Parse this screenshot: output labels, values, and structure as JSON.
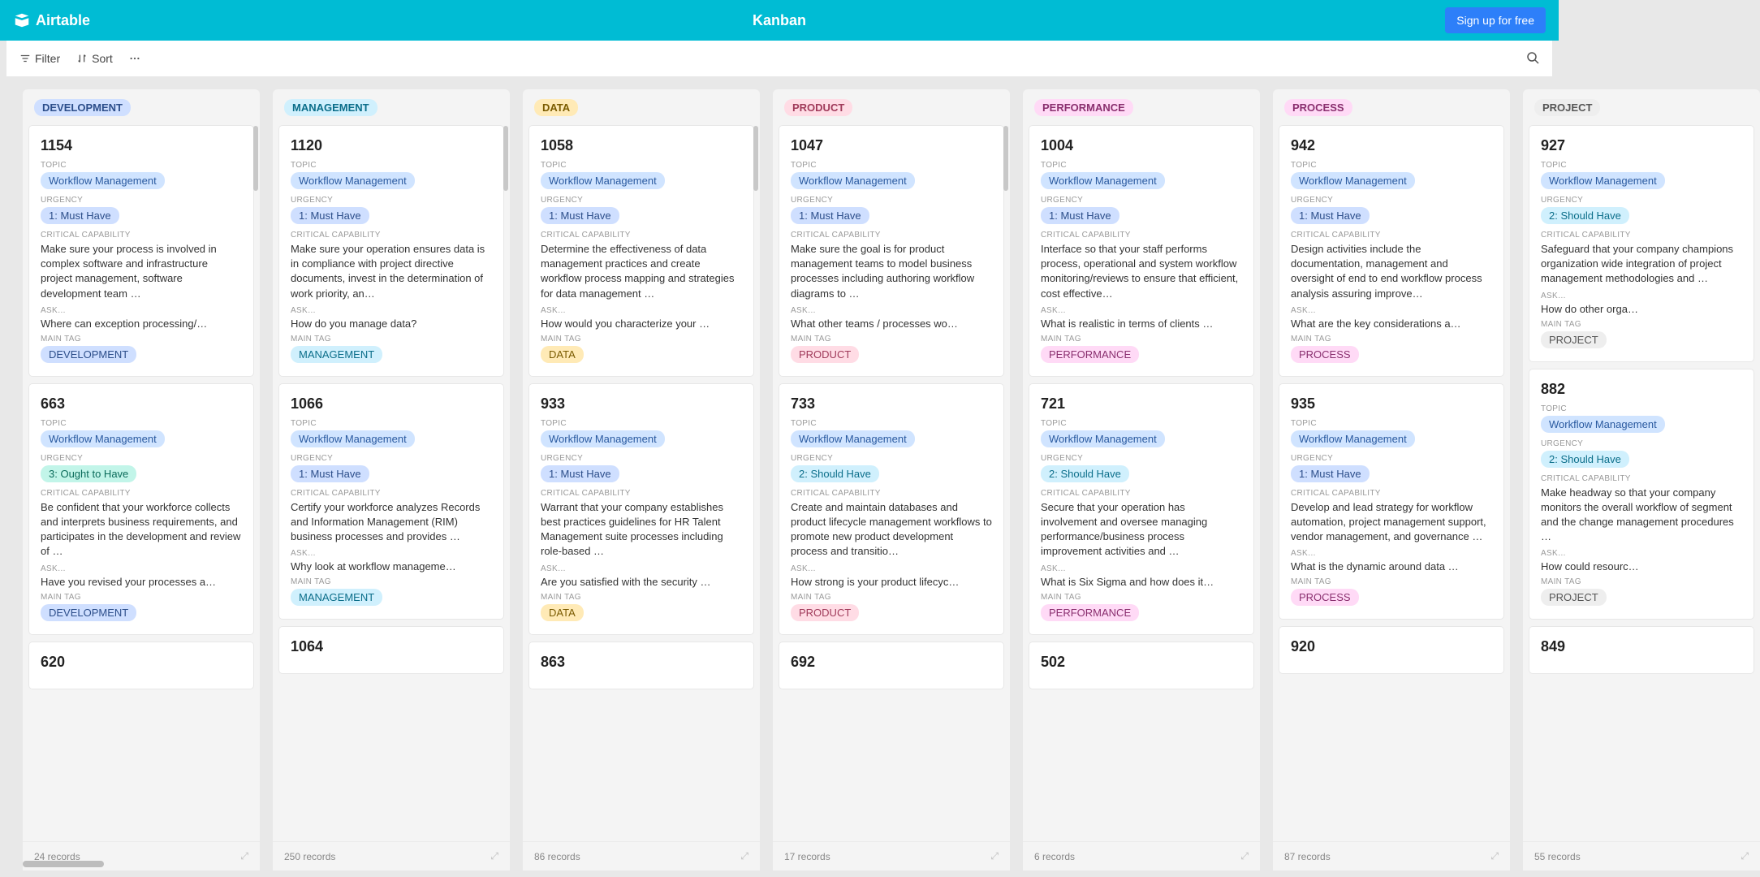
{
  "header": {
    "brand": "Airtable",
    "title": "Kanban",
    "signup": "Sign up for free"
  },
  "toolbar": {
    "filter": "Filter",
    "sort": "Sort"
  },
  "pill_colors": {
    "DEVELOPMENT": "c-blue",
    "MANAGEMENT": "c-cyan",
    "DATA": "c-yellow",
    "PRODUCT": "c-pink",
    "PERFORMANCE": "c-rose",
    "PROCESS": "c-rose",
    "PROJECT": "c-gray",
    "Workflow Management": "c-lblue",
    "1: Must Have": "c-blue",
    "2: Should Have": "c-cyan",
    "3: Ought to Have": "c-teal"
  },
  "field_labels": {
    "topic": "TOPIC",
    "urgency": "URGENCY",
    "cap": "CRITICAL CAPABILITY",
    "ask": "ASK…",
    "tag": "MAIN TAG"
  },
  "columns": [
    {
      "name": "DEVELOPMENT",
      "count": "24 records",
      "cards": [
        {
          "id": "1154",
          "topic": "Workflow Management",
          "urgency": "1: Must Have",
          "cap": "Make sure your process is involved in complex software and infrastructure project management, software development team …",
          "ask": "Where can exception processing/…",
          "tag": "DEVELOPMENT"
        },
        {
          "id": "663",
          "topic": "Workflow Management",
          "urgency": "3: Ought to Have",
          "cap": "Be confident that your workforce collects and interprets business requirements, and participates in the development and review of …",
          "ask": "Have you revised your processes a…",
          "tag": "DEVELOPMENT"
        },
        {
          "id": "620",
          "topic": "",
          "urgency": "",
          "cap": "",
          "ask": "",
          "tag": ""
        }
      ]
    },
    {
      "name": "MANAGEMENT",
      "count": "250 records",
      "cards": [
        {
          "id": "1120",
          "topic": "Workflow Management",
          "urgency": "1: Must Have",
          "cap": "Make sure your operation ensures data is in compliance with project directive documents, invest in the determination of work priority, an…",
          "ask": "How do you manage data?",
          "tag": "MANAGEMENT"
        },
        {
          "id": "1066",
          "topic": "Workflow Management",
          "urgency": "1: Must Have",
          "cap": "Certify your workforce analyzes Records and Information Management (RIM) business processes and provides …",
          "ask": "Why look at workflow manageme…",
          "tag": "MANAGEMENT"
        },
        {
          "id": "1064",
          "topic": "",
          "urgency": "",
          "cap": "",
          "ask": "",
          "tag": ""
        }
      ]
    },
    {
      "name": "DATA",
      "count": "86 records",
      "cards": [
        {
          "id": "1058",
          "topic": "Workflow Management",
          "urgency": "1: Must Have",
          "cap": "Determine the effectiveness of data management practices and create workflow process mapping and strategies for data management …",
          "ask": "How would you characterize your …",
          "tag": "DATA"
        },
        {
          "id": "933",
          "topic": "Workflow Management",
          "urgency": "1: Must Have",
          "cap": "Warrant that your company establishes best practices guidelines for HR Talent Management suite processes including role-based …",
          "ask": "Are you satisfied with the security …",
          "tag": "DATA"
        },
        {
          "id": "863",
          "topic": "",
          "urgency": "",
          "cap": "",
          "ask": "",
          "tag": ""
        }
      ]
    },
    {
      "name": "PRODUCT",
      "count": "17 records",
      "cards": [
        {
          "id": "1047",
          "topic": "Workflow Management",
          "urgency": "1: Must Have",
          "cap": "Make sure the goal is for product management teams to model business processes including authoring workflow diagrams to …",
          "ask": "What other teams / processes wo…",
          "tag": "PRODUCT"
        },
        {
          "id": "733",
          "topic": "Workflow Management",
          "urgency": "2: Should Have",
          "cap": "Create and maintain databases and product lifecycle management workflows to promote new product development process and transitio…",
          "ask": "How strong is your product lifecyc…",
          "tag": "PRODUCT"
        },
        {
          "id": "692",
          "topic": "",
          "urgency": "",
          "cap": "",
          "ask": "",
          "tag": ""
        }
      ]
    },
    {
      "name": "PERFORMANCE",
      "count": "6 records",
      "cards": [
        {
          "id": "1004",
          "topic": "Workflow Management",
          "urgency": "1: Must Have",
          "cap": "Interface so that your staff performs process, operational and system workflow monitoring/reviews to ensure that efficient, cost effective…",
          "ask": "What is realistic in terms of clients …",
          "tag": "PERFORMANCE"
        },
        {
          "id": "721",
          "topic": "Workflow Management",
          "urgency": "2: Should Have",
          "cap": "Secure that your operation has involvement and oversee managing performance/business process improvement activities and …",
          "ask": "What is Six Sigma and how does it…",
          "tag": "PERFORMANCE"
        },
        {
          "id": "502",
          "topic": "",
          "urgency": "",
          "cap": "",
          "ask": "",
          "tag": ""
        }
      ]
    },
    {
      "name": "PROCESS",
      "count": "87 records",
      "cards": [
        {
          "id": "942",
          "topic": "Workflow Management",
          "urgency": "1: Must Have",
          "cap": "Design activities include the documentation, management and oversight of end to end workflow process analysis assuring improve…",
          "ask": "What are the key considerations a…",
          "tag": "PROCESS"
        },
        {
          "id": "935",
          "topic": "Workflow Management",
          "urgency": "1: Must Have",
          "cap": "Develop and lead strategy for workflow automation, project management support, vendor management, and governance …",
          "ask": "What is the dynamic around data …",
          "tag": "PROCESS"
        },
        {
          "id": "920",
          "topic": "",
          "urgency": "",
          "cap": "",
          "ask": "",
          "tag": ""
        }
      ]
    },
    {
      "name": "PROJECT",
      "count": "55 records",
      "cards": [
        {
          "id": "927",
          "topic": "Workflow Management",
          "urgency": "2: Should Have",
          "cap": "Safeguard that your company champions organization wide integration of project management methodologies and …",
          "ask": "How do other orga…",
          "tag": "PROJECT"
        },
        {
          "id": "882",
          "topic": "Workflow Management",
          "urgency": "2: Should Have",
          "cap": "Make headway so that your company monitors the overall workflow of segment and the change management procedures …",
          "ask": "How could resourc…",
          "tag": "PROJECT"
        },
        {
          "id": "849",
          "topic": "",
          "urgency": "",
          "cap": "",
          "ask": "",
          "tag": ""
        }
      ]
    }
  ]
}
